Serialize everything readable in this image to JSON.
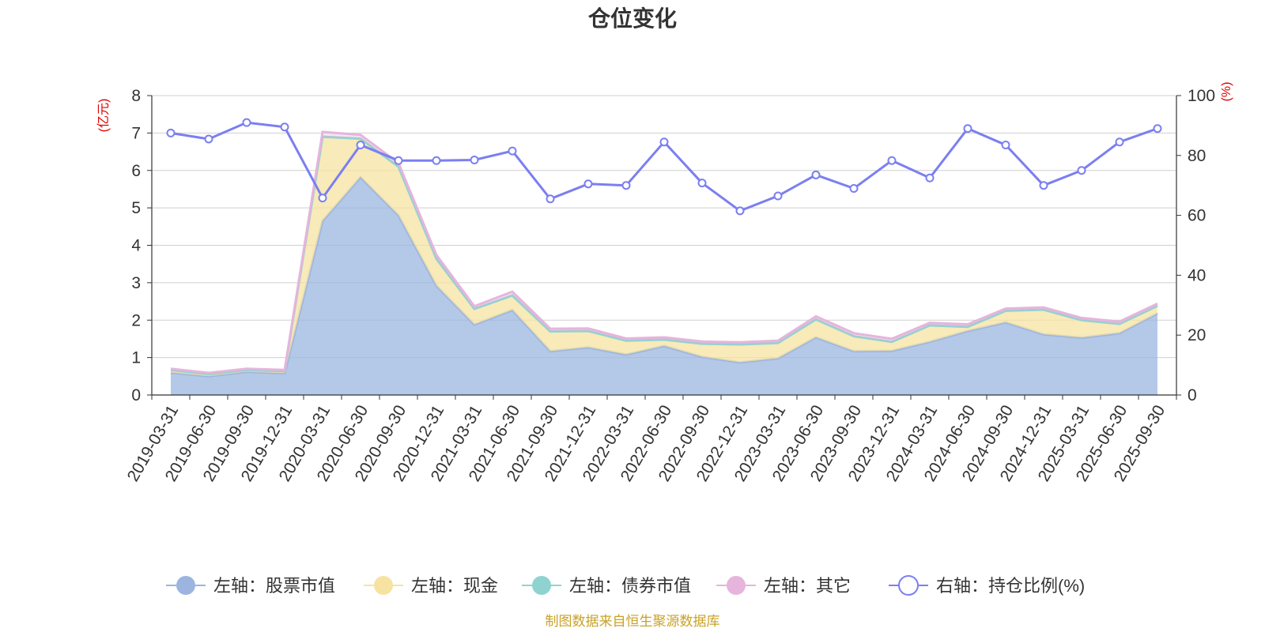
{
  "chart_data": {
    "type": "area",
    "title": "仓位变化",
    "left_unit": "(亿元)",
    "right_unit": "(%)",
    "left_ylim": [
      0,
      8
    ],
    "left_yticks": [
      "0",
      "1",
      "2",
      "3",
      "4",
      "5",
      "6",
      "7",
      "8"
    ],
    "right_ylim": [
      0,
      100
    ],
    "right_yticks": [
      "0",
      "20",
      "40",
      "60",
      "80",
      "100"
    ],
    "categories": [
      "2019-03-31",
      "2019-06-30",
      "2019-09-30",
      "2019-12-31",
      "2020-03-31",
      "2020-06-30",
      "2020-09-30",
      "2020-12-31",
      "2021-03-31",
      "2021-06-30",
      "2021-09-30",
      "2021-12-31",
      "2022-03-31",
      "2022-06-30",
      "2022-09-30",
      "2022-12-31",
      "2023-03-31",
      "2023-06-30",
      "2023-09-30",
      "2023-12-31",
      "2024-03-31",
      "2024-06-30",
      "2024-09-30",
      "2024-12-31",
      "2025-03-31",
      "2025-06-30",
      "2025-09-30"
    ],
    "series": [
      {
        "name": "左轴：股票市值",
        "axis": "left",
        "color": "#9bb5e0",
        "values": [
          0.6,
          0.5,
          0.62,
          0.58,
          4.65,
          5.82,
          4.8,
          2.92,
          1.88,
          2.27,
          1.17,
          1.27,
          1.08,
          1.31,
          1.02,
          0.87,
          0.98,
          1.54,
          1.17,
          1.18,
          1.42,
          1.71,
          1.94,
          1.62,
          1.53,
          1.65,
          2.18
        ]
      },
      {
        "name": "左轴：现金",
        "axis": "left",
        "color": "#f6e3a1",
        "values": [
          0.07,
          0.06,
          0.05,
          0.06,
          2.25,
          1.03,
          1.3,
          0.72,
          0.42,
          0.39,
          0.53,
          0.44,
          0.37,
          0.17,
          0.35,
          0.48,
          0.41,
          0.48,
          0.4,
          0.24,
          0.44,
          0.11,
          0.31,
          0.66,
          0.47,
          0.25,
          0.2
        ]
      },
      {
        "name": "左轴：债券市值",
        "axis": "left",
        "color": "#8fd3d1",
        "values": [
          0,
          0,
          0,
          0,
          0,
          0,
          0,
          0,
          0,
          0,
          0,
          0,
          0,
          0,
          0,
          0,
          0,
          0,
          0,
          0,
          0,
          0,
          0,
          0,
          0,
          0,
          0
        ]
      },
      {
        "name": "左轴：其它",
        "axis": "left",
        "color": "#e6b4dc",
        "values": [
          0.03,
          0.03,
          0.03,
          0.03,
          0.13,
          0.1,
          0.1,
          0.1,
          0.07,
          0.1,
          0.07,
          0.07,
          0.06,
          0.06,
          0.06,
          0.06,
          0.06,
          0.08,
          0.08,
          0.08,
          0.07,
          0.07,
          0.06,
          0.06,
          0.06,
          0.06,
          0.06
        ]
      },
      {
        "name": "右轴：持仓比例(%)",
        "axis": "right",
        "color": "#7b7ff0",
        "values": [
          87.5,
          85.5,
          91,
          89.5,
          65.8,
          83.5,
          78.3,
          78.3,
          78.5,
          81.5,
          65.5,
          70.5,
          70,
          84.5,
          70.8,
          61.5,
          66.5,
          73.5,
          69,
          78.3,
          72.5,
          89,
          83.5,
          70,
          75,
          84.5,
          89
        ]
      }
    ]
  },
  "footer": {
    "source": "制图数据来自恒生聚源数据库"
  }
}
